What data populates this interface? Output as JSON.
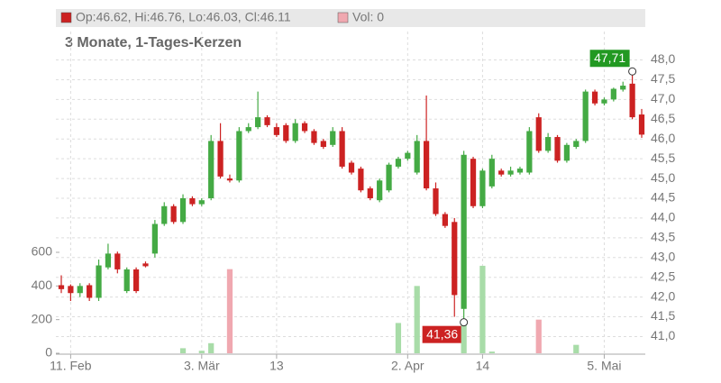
{
  "chart_data": {
    "type": "candlestick",
    "subtitle": "3 Monate, 1-Tages-Kerzen",
    "legend": [
      {
        "label": "Op:46.62, Hi:46.76, Lo:46.03, Cl:46.11",
        "color": "#cc2222"
      },
      {
        "label": "Vol: 0",
        "color": "#f0a8b0"
      }
    ],
    "categories": [
      null,
      "11. Feb",
      null,
      null,
      null,
      null,
      null,
      null,
      null,
      null,
      null,
      null,
      null,
      null,
      null,
      "3. Mär",
      null,
      null,
      null,
      null,
      null,
      null,
      null,
      "13",
      null,
      null,
      null,
      null,
      null,
      null,
      null,
      null,
      null,
      null,
      null,
      null,
      null,
      "2. Apr",
      null,
      null,
      null,
      null,
      null,
      null,
      null,
      "14",
      null,
      null,
      null,
      null,
      null,
      null,
      null,
      null,
      null,
      null,
      null,
      null,
      "5. Mai",
      null,
      null,
      null,
      null
    ],
    "open": [
      42.3,
      42.28,
      42.1,
      42.3,
      41.98,
      42.75,
      43.1,
      42.15,
      42.7,
      42.85,
      43.1,
      43.85,
      44.3,
      43.9,
      44.5,
      44.35,
      44.5,
      45.95,
      45.0,
      44.95,
      46.2,
      46.3,
      46.55,
      46.3,
      46.35,
      45.95,
      46.4,
      46.2,
      45.95,
      45.85,
      46.2,
      45.4,
      45.25,
      44.75,
      44.45,
      44.7,
      45.3,
      45.5,
      45.15,
      45.95,
      44.75,
      44.1,
      43.9,
      41.7,
      45.5,
      44.3,
      44.8,
      45.2,
      45.1,
      45.15,
      45.15,
      46.55,
      45.7,
      46.05,
      45.45,
      45.8,
      45.95,
      47.2,
      46.9,
      47.0,
      47.25,
      47.4,
      46.62
    ],
    "high": [
      42.55,
      42.32,
      42.35,
      42.35,
      42.95,
      43.35,
      43.15,
      42.75,
      42.75,
      42.9,
      43.95,
      44.4,
      44.35,
      44.6,
      44.55,
      44.5,
      46.1,
      46.4,
      45.1,
      46.3,
      46.4,
      47.2,
      46.6,
      46.4,
      46.4,
      46.5,
      46.45,
      46.25,
      46.0,
      46.3,
      46.3,
      45.45,
      45.3,
      44.8,
      45.0,
      45.4,
      45.55,
      45.7,
      46.1,
      47.1,
      44.9,
      44.15,
      44.0,
      45.7,
      45.55,
      45.25,
      45.6,
      45.25,
      45.3,
      45.3,
      46.3,
      46.65,
      46.15,
      46.1,
      45.9,
      46.0,
      47.25,
      47.25,
      47.05,
      47.3,
      47.45,
      47.71,
      46.76
    ],
    "low": [
      42.1,
      41.9,
      42.0,
      41.9,
      41.9,
      42.7,
      42.6,
      42.1,
      42.1,
      42.75,
      43.0,
      43.8,
      43.85,
      43.85,
      44.3,
      44.3,
      44.45,
      45.0,
      44.9,
      44.9,
      46.15,
      46.25,
      46.3,
      46.05,
      45.9,
      45.9,
      46.15,
      45.85,
      45.75,
      45.8,
      45.25,
      45.1,
      44.65,
      44.45,
      44.4,
      44.65,
      45.25,
      45.45,
      45.1,
      44.7,
      44.05,
      43.75,
      41.5,
      41.36,
      44.25,
      44.25,
      44.75,
      45.05,
      45.05,
      45.1,
      45.1,
      45.65,
      45.65,
      45.4,
      45.4,
      45.75,
      45.9,
      46.85,
      46.85,
      46.95,
      47.2,
      46.5,
      46.03
    ],
    "close": [
      42.2,
      42.1,
      42.28,
      41.98,
      42.8,
      43.1,
      42.7,
      42.7,
      42.15,
      42.78,
      43.85,
      44.3,
      43.9,
      44.5,
      44.35,
      44.45,
      45.95,
      45.05,
      44.95,
      46.2,
      46.3,
      46.55,
      46.35,
      46.1,
      45.95,
      46.4,
      46.2,
      45.9,
      45.8,
      46.2,
      45.3,
      45.15,
      44.7,
      44.5,
      44.95,
      45.35,
      45.5,
      45.65,
      45.95,
      44.75,
      44.1,
      43.8,
      42.05,
      45.6,
      44.3,
      45.2,
      45.5,
      45.1,
      45.2,
      45.25,
      46.2,
      45.7,
      46.05,
      45.45,
      45.85,
      45.95,
      47.2,
      46.9,
      47.0,
      47.27,
      47.35,
      46.55,
      46.11
    ],
    "volume": [
      0,
      0,
      0,
      0,
      0,
      0,
      0,
      0,
      0,
      0,
      0,
      0,
      0,
      30,
      0,
      15,
      60,
      0,
      500,
      0,
      0,
      0,
      0,
      0,
      0,
      0,
      0,
      0,
      0,
      0,
      0,
      0,
      0,
      0,
      0,
      0,
      180,
      0,
      400,
      0,
      0,
      0,
      0,
      170,
      0,
      520,
      10,
      0,
      0,
      0,
      0,
      200,
      0,
      0,
      0,
      50,
      0,
      0,
      0,
      0,
      0,
      0,
      0
    ],
    "ylim": [
      40.6,
      48.4
    ],
    "yticks": [
      {
        "value": 41.0,
        "label": "41,0"
      },
      {
        "value": 41.5,
        "label": "41,5"
      },
      {
        "value": 42.0,
        "label": "42,0"
      },
      {
        "value": 42.5,
        "label": "42,5"
      },
      {
        "value": 43.0,
        "label": "43,0"
      },
      {
        "value": 43.5,
        "label": "43,5"
      },
      {
        "value": 44.0,
        "label": "44,0"
      },
      {
        "value": 44.5,
        "label": "44,5"
      },
      {
        "value": 45.0,
        "label": "45,0"
      },
      {
        "value": 45.5,
        "label": "45,5"
      },
      {
        "value": 46.0,
        "label": "46,0"
      },
      {
        "value": 46.5,
        "label": "46,5"
      },
      {
        "value": 47.0,
        "label": "47,0"
      },
      {
        "value": 47.5,
        "label": "47,5"
      },
      {
        "value": 48.0,
        "label": "48,0"
      }
    ],
    "volume_lim": [
      0,
      600
    ],
    "volume_ticks": [
      0,
      200,
      400,
      600
    ],
    "high_label": {
      "value": 47.71,
      "label": "47,71"
    },
    "low_label": {
      "value": 41.36,
      "label": "41,36"
    },
    "up_color": "#44aa44",
    "down_color": "#cc2222",
    "up_volume_color": "#a8dca8",
    "down_volume_color": "#f0a8b0",
    "grid": true
  }
}
